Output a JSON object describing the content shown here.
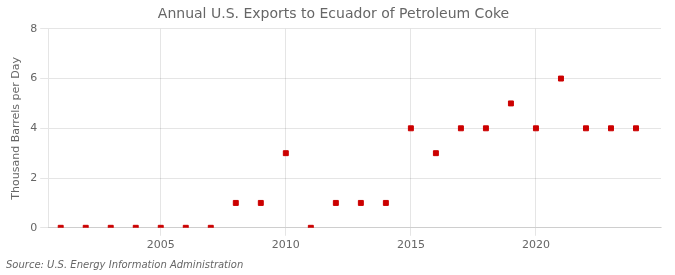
{
  "chart_data": {
    "type": "scatter",
    "title": "Annual U.S. Exports to Ecuador of Petroleum Coke",
    "ylabel": "Thousand Barrels per Day",
    "source": "Source: U.S. Energy Information Administration",
    "x": [
      2001,
      2002,
      2003,
      2004,
      2005,
      2006,
      2007,
      2008,
      2009,
      2010,
      2011,
      2012,
      2013,
      2014,
      2015,
      2016,
      2017,
      2018,
      2019,
      2020,
      2021,
      2022,
      2023,
      2024
    ],
    "values": [
      0,
      0,
      0,
      0,
      0,
      0,
      0,
      1,
      1,
      3,
      0,
      1,
      1,
      1,
      4,
      3,
      4,
      4,
      5,
      4,
      6,
      4,
      4,
      4
    ],
    "color": "#cc0000",
    "marker": "square",
    "xlim": [
      2000.5,
      2025
    ],
    "xticks": [
      2005,
      2010,
      2015,
      2020
    ],
    "ylim": [
      0,
      8
    ],
    "yticks": [
      0,
      2,
      4,
      6,
      8
    ],
    "grid": true
  }
}
